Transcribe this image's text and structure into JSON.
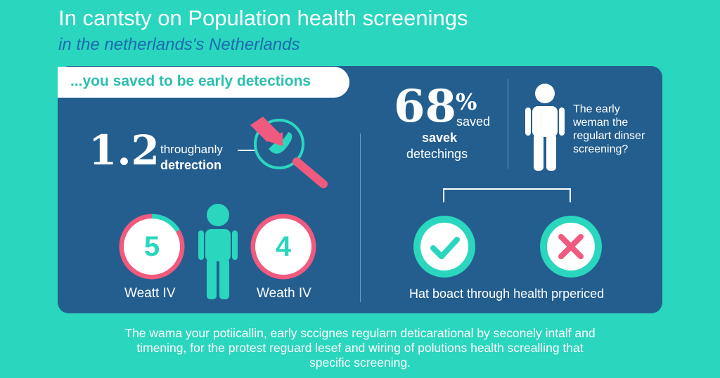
{
  "header": {
    "title": "In cantsty on Population health screenings",
    "subtitle": "in the netherlands's Netherlands"
  },
  "banner": {
    "text": "...you saved to be early detections"
  },
  "left": {
    "stat_number": "1.2",
    "stat_line1": "throughanly",
    "stat_line2": "detrection",
    "rings": [
      {
        "number": "5",
        "label": "Weatt IV"
      },
      {
        "number": "4",
        "label": "Weath IV"
      }
    ]
  },
  "right": {
    "percent_number": "68",
    "percent_sign": "%",
    "percent_suffix": "saved",
    "sub_line1": "savek",
    "sub_line2": "detechings",
    "question_lines": [
      "The early",
      "weman the",
      "regulart dinser",
      "screening?"
    ],
    "bottom_label": "Hat boact through health prpericed"
  },
  "footer": {
    "lines": [
      "The wama your potiicallin, early sccignes regularn deticarational by seconely intalf and",
      "timening, for the protest reguard lesef and wiring of polutions health screalling that",
      "specific screening."
    ]
  },
  "colors": {
    "background": "#2ad6be",
    "panel": "#235e8f",
    "accent_pink": "#f05a7e",
    "accent_teal": "#2ad6be"
  },
  "icons": [
    "magnifier-icon",
    "person-icon",
    "check-icon",
    "cross-icon",
    "arrow-icon"
  ]
}
